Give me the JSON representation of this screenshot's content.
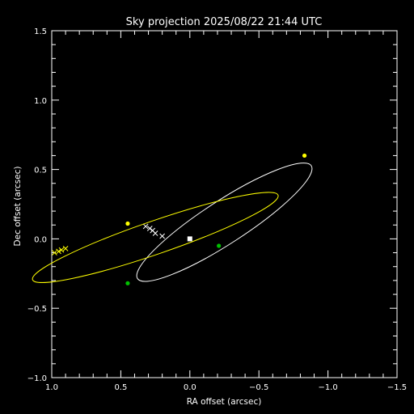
{
  "chart_data": {
    "type": "scatter",
    "title": "Sky projection 2025/08/22 21:44 UTC",
    "xlabel": "RA offset (arcsec)",
    "ylabel": "Dec offset (arcsec)",
    "xlim": [
      1.0,
      -1.5
    ],
    "ylim": [
      -1.0,
      1.5
    ],
    "x_ticks": [
      1.0,
      0.5,
      0.0,
      -0.5,
      -1.0,
      -1.5
    ],
    "x_tick_labels": [
      "1.0",
      "0.5",
      "0.0",
      "−0.5",
      "−1.0",
      "−1.5"
    ],
    "y_ticks": [
      -1.0,
      -0.5,
      0.0,
      0.5,
      1.0,
      1.5
    ],
    "y_tick_labels": [
      "−1.0",
      "−0.5",
      "0.0",
      "0.5",
      "1.0",
      "1.5"
    ],
    "grid": false,
    "colors": {
      "background": "#000000",
      "axes": "#ffffff",
      "orbit_a": "#ffffff",
      "orbit_b": "#ffff00",
      "marker_node": "#00c000",
      "marker_point": "#ffff00",
      "primary": "#ffffff"
    },
    "primary": {
      "x": 0.0,
      "y": 0.0
    },
    "orbits": [
      {
        "color": "#ffffff",
        "center": [
          -0.25,
          0.12
        ],
        "semi_major": 0.75,
        "semi_minor": 0.155,
        "angle_deg": 33,
        "track_points": [
          [
            0.32,
            0.09
          ],
          [
            0.27,
            0.06
          ],
          [
            0.2,
            0.02
          ],
          [
            0.25,
            0.04
          ],
          [
            0.29,
            0.075
          ]
        ],
        "markers": [
          {
            "x": -0.83,
            "y": 0.6,
            "color": "#ffff00"
          },
          {
            "x": 0.45,
            "y": -0.32,
            "color": "#00c000"
          }
        ]
      },
      {
        "color": "#ffff00",
        "center": [
          0.25,
          0.01
        ],
        "semi_major": 0.94,
        "semi_minor": 0.12,
        "angle_deg": 19,
        "track_points": [
          [
            0.98,
            -0.1
          ],
          [
            0.93,
            -0.08
          ],
          [
            0.9,
            -0.07
          ],
          [
            0.95,
            -0.09
          ]
        ],
        "markers": [
          {
            "x": 0.45,
            "y": 0.11,
            "color": "#ffff00"
          },
          {
            "x": -0.21,
            "y": -0.05,
            "color": "#00c000"
          }
        ]
      }
    ]
  }
}
